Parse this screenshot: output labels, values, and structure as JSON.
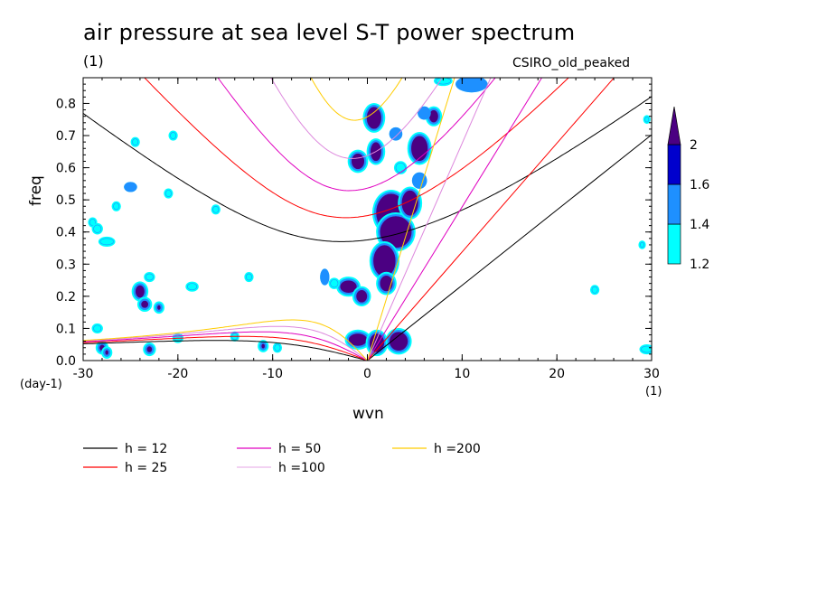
{
  "title": "air pressure at sea level S-T power spectrum",
  "units": "(1)",
  "model": "CSIRO_old_peaked",
  "colors": {
    "level_1_2": "#00ffff",
    "level_1_4": "#1e90ff",
    "level_1_6": "#0000cd",
    "level_2": "#4b0082",
    "outline": "#1e90ff",
    "h12": "#000000",
    "h25": "#ff0000",
    "h50": "#e000c0",
    "h100": "#dd88dd",
    "h200": "#ffcc00"
  },
  "chart_data": {
    "type": "heatmap",
    "title": "air pressure at sea level S-T power spectrum",
    "xlabel": "wvn",
    "ylabel": "freq",
    "x_units": "(1)",
    "y_units": "(day-1)",
    "xlim": [
      -30,
      30
    ],
    "ylim": [
      0,
      0.88
    ],
    "x_ticks": [
      -30,
      -20,
      -10,
      0,
      10,
      20,
      30
    ],
    "x_tick_labels": [
      "-30",
      "-20",
      "-10",
      "0",
      "10",
      "20",
      "30"
    ],
    "y_ticks": [
      0,
      0.1,
      0.2,
      0.3,
      0.4,
      0.5,
      0.6,
      0.7,
      0.8
    ],
    "y_tick_labels": [
      "0.0",
      "0.1",
      "0.2",
      "0.3",
      "0.4",
      "0.5",
      "0.6",
      "0.7",
      "0.8"
    ],
    "colorbar": {
      "levels": [
        1.2,
        1.4,
        1.6,
        2
      ],
      "labels": [
        "1.2",
        "1.4",
        "1.6",
        "2"
      ],
      "colors": [
        "#00ffff",
        "#1e90ff",
        "#0000cd",
        "#4b0082"
      ]
    },
    "legend": [
      {
        "label": "h = 12",
        "color": "#000000"
      },
      {
        "label": "h = 25",
        "color": "#ff0000"
      },
      {
        "label": "h = 50",
        "color": "#e000c0"
      },
      {
        "label": "h =100",
        "color": "#dd88dd"
      },
      {
        "label": "h =200",
        "color": "#ffcc00"
      }
    ],
    "dispersion_curves": [
      {
        "h": 12,
        "color": "#000000"
      },
      {
        "h": 25,
        "color": "#ff0000"
      },
      {
        "h": 50,
        "color": "#e000c0"
      },
      {
        "h": 100,
        "color": "#dd88dd"
      },
      {
        "h": 200,
        "color": "#ffcc00"
      }
    ],
    "blobs": [
      {
        "x": 0.7,
        "y": 0.755,
        "rx": 0.8,
        "ry": 0.035,
        "level": 2
      },
      {
        "x": 0.9,
        "y": 0.65,
        "rx": 0.6,
        "ry": 0.03,
        "level": 2
      },
      {
        "x": -1.0,
        "y": 0.62,
        "rx": 0.7,
        "ry": 0.025,
        "level": 2
      },
      {
        "x": 2.5,
        "y": 0.46,
        "rx": 1.6,
        "ry": 0.06,
        "level": 2
      },
      {
        "x": 3.0,
        "y": 0.4,
        "rx": 1.7,
        "ry": 0.05,
        "level": 2
      },
      {
        "x": 1.8,
        "y": 0.31,
        "rx": 1.2,
        "ry": 0.05,
        "level": 2
      },
      {
        "x": 4.5,
        "y": 0.49,
        "rx": 0.9,
        "ry": 0.04,
        "level": 2
      },
      {
        "x": 5.5,
        "y": 0.66,
        "rx": 0.9,
        "ry": 0.04,
        "level": 2
      },
      {
        "x": 2.0,
        "y": 0.24,
        "rx": 0.7,
        "ry": 0.025,
        "level": 2
      },
      {
        "x": -2.0,
        "y": 0.23,
        "rx": 0.9,
        "ry": 0.02,
        "level": 2
      },
      {
        "x": -0.6,
        "y": 0.2,
        "rx": 0.6,
        "ry": 0.02,
        "level": 2
      },
      {
        "x": -1.0,
        "y": 0.065,
        "rx": 1.0,
        "ry": 0.02,
        "level": 2
      },
      {
        "x": 1.0,
        "y": 0.055,
        "rx": 0.8,
        "ry": 0.03,
        "level": 2
      },
      {
        "x": 3.3,
        "y": 0.06,
        "rx": 1.0,
        "ry": 0.03,
        "level": 2
      },
      {
        "x": 7.0,
        "y": 0.76,
        "rx": 0.5,
        "ry": 0.02,
        "level": 2
      },
      {
        "x": -24.0,
        "y": 0.215,
        "rx": 0.5,
        "ry": 0.02,
        "level": 2
      },
      {
        "x": -23.5,
        "y": 0.175,
        "rx": 0.4,
        "ry": 0.012,
        "level": 2
      },
      {
        "x": -23.0,
        "y": 0.035,
        "rx": 0.3,
        "ry": 0.01,
        "level": 2
      },
      {
        "x": -22.0,
        "y": 0.165,
        "rx": 0.2,
        "ry": 0.008,
        "level": 2
      },
      {
        "x": -11.0,
        "y": 0.045,
        "rx": 0.2,
        "ry": 0.008,
        "level": 2
      },
      {
        "x": -28.0,
        "y": 0.04,
        "rx": 0.3,
        "ry": 0.01,
        "level": 2
      },
      {
        "x": -27.5,
        "y": 0.025,
        "rx": 0.2,
        "ry": 0.008,
        "level": 2
      },
      {
        "x": -4.5,
        "y": 0.26,
        "rx": 0.3,
        "ry": 0.02,
        "level": 1.4
      },
      {
        "x": -25.0,
        "y": 0.54,
        "rx": 0.5,
        "ry": 0.01,
        "level": 1.4
      },
      {
        "x": -29.0,
        "y": 0.43,
        "rx": 0.3,
        "ry": 0.01,
        "level": 1.2
      },
      {
        "x": -27.5,
        "y": 0.37,
        "rx": 0.7,
        "ry": 0.01,
        "level": 1.2
      },
      {
        "x": -28.5,
        "y": 0.41,
        "rx": 0.4,
        "ry": 0.012,
        "level": 1.2
      },
      {
        "x": -23.0,
        "y": 0.26,
        "rx": 0.4,
        "ry": 0.01,
        "level": 1.2
      },
      {
        "x": -20.0,
        "y": 0.07,
        "rx": 0.4,
        "ry": 0.01,
        "level": 1.2
      },
      {
        "x": -28.5,
        "y": 0.1,
        "rx": 0.4,
        "ry": 0.01,
        "level": 1.2
      },
      {
        "x": -18.5,
        "y": 0.23,
        "rx": 0.5,
        "ry": 0.01,
        "level": 1.2
      },
      {
        "x": -12.5,
        "y": 0.26,
        "rx": 0.3,
        "ry": 0.01,
        "level": 1.2
      },
      {
        "x": -16.0,
        "y": 0.47,
        "rx": 0.3,
        "ry": 0.01,
        "level": 1.2
      },
      {
        "x": -21.0,
        "y": 0.52,
        "rx": 0.3,
        "ry": 0.01,
        "level": 1.2
      },
      {
        "x": -20.5,
        "y": 0.7,
        "rx": 0.3,
        "ry": 0.01,
        "level": 1.2
      },
      {
        "x": -24.5,
        "y": 0.68,
        "rx": 0.3,
        "ry": 0.01,
        "level": 1.2
      },
      {
        "x": -26.5,
        "y": 0.48,
        "rx": 0.3,
        "ry": 0.01,
        "level": 1.2
      },
      {
        "x": -14.0,
        "y": 0.075,
        "rx": 0.3,
        "ry": 0.01,
        "level": 1.2
      },
      {
        "x": -9.5,
        "y": 0.04,
        "rx": 0.3,
        "ry": 0.01,
        "level": 1.2
      },
      {
        "x": 24.0,
        "y": 0.22,
        "rx": 0.3,
        "ry": 0.01,
        "level": 1.2
      },
      {
        "x": 29.5,
        "y": 0.035,
        "rx": 0.6,
        "ry": 0.01,
        "level": 1.2
      },
      {
        "x": 29.0,
        "y": 0.36,
        "rx": 0.2,
        "ry": 0.008,
        "level": 1.2
      },
      {
        "x": 29.5,
        "y": 0.75,
        "rx": 0.2,
        "ry": 0.008,
        "level": 1.2
      },
      {
        "x": 11.0,
        "y": 0.86,
        "rx": 1.5,
        "ry": 0.02,
        "level": 1.4
      },
      {
        "x": 8.0,
        "y": 0.87,
        "rx": 0.8,
        "ry": 0.01,
        "level": 1.2
      },
      {
        "x": 6.0,
        "y": 0.77,
        "rx": 0.5,
        "ry": 0.015,
        "level": 1.4
      },
      {
        "x": 3.0,
        "y": 0.705,
        "rx": 0.5,
        "ry": 0.015,
        "level": 1.4
      },
      {
        "x": 5.5,
        "y": 0.56,
        "rx": 0.6,
        "ry": 0.02,
        "level": 1.4
      },
      {
        "x": 3.5,
        "y": 0.6,
        "rx": 0.5,
        "ry": 0.015,
        "level": 1.2
      },
      {
        "x": -3.5,
        "y": 0.24,
        "rx": 0.4,
        "ry": 0.012,
        "level": 1.2
      }
    ]
  }
}
